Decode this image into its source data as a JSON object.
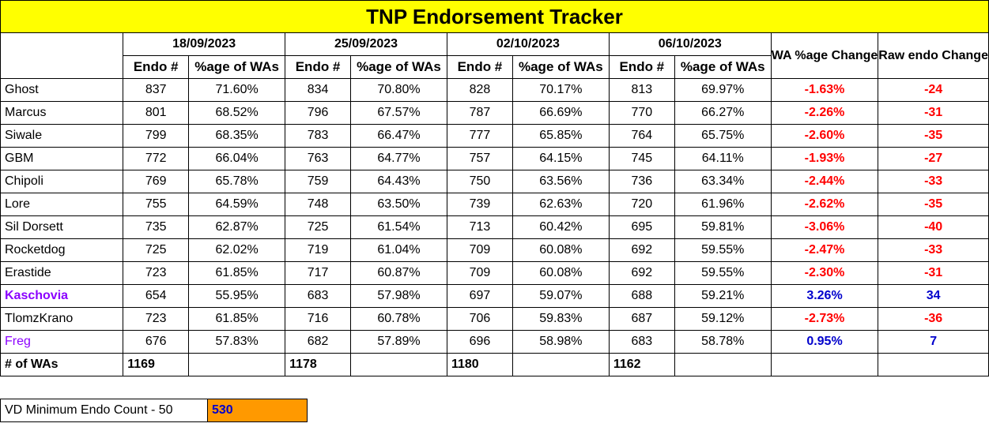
{
  "title": "TNP Endorsement Tracker",
  "dates": [
    "18/09/2023",
    "25/09/2023",
    "02/10/2023",
    "06/10/2023"
  ],
  "sub_headers": {
    "endo": "Endo #",
    "pct": "%age of WAs"
  },
  "change_headers": {
    "wa_pct": "WA %age Change",
    "raw": "Raw endo Change"
  },
  "rows": [
    {
      "name": "Ghost",
      "endo": [
        "837",
        "834",
        "828",
        "813"
      ],
      "pct": [
        "71.60%",
        "70.80%",
        "70.17%",
        "69.97%"
      ],
      "wa_change": "-1.63%",
      "raw_change": "-24"
    },
    {
      "name": "Marcus",
      "endo": [
        "801",
        "796",
        "787",
        "770"
      ],
      "pct": [
        "68.52%",
        "67.57%",
        "66.69%",
        "66.27%"
      ],
      "wa_change": "-2.26%",
      "raw_change": "-31"
    },
    {
      "name": "Siwale",
      "endo": [
        "799",
        "783",
        "777",
        "764"
      ],
      "pct": [
        "68.35%",
        "66.47%",
        "65.85%",
        "65.75%"
      ],
      "wa_change": "-2.60%",
      "raw_change": "-35"
    },
    {
      "name": "GBM",
      "endo": [
        "772",
        "763",
        "757",
        "745"
      ],
      "pct": [
        "66.04%",
        "64.77%",
        "64.15%",
        "64.11%"
      ],
      "wa_change": "-1.93%",
      "raw_change": "-27"
    },
    {
      "name": "Chipoli",
      "endo": [
        "769",
        "759",
        "750",
        "736"
      ],
      "pct": [
        "65.78%",
        "64.43%",
        "63.56%",
        "63.34%"
      ],
      "wa_change": "-2.44%",
      "raw_change": "-33"
    },
    {
      "name": "Lore",
      "endo": [
        "755",
        "748",
        "739",
        "720"
      ],
      "pct": [
        "64.59%",
        "63.50%",
        "62.63%",
        "61.96%"
      ],
      "wa_change": "-2.62%",
      "raw_change": "-35"
    },
    {
      "name": "Sil Dorsett",
      "endo": [
        "735",
        "725",
        "713",
        "695"
      ],
      "pct": [
        "62.87%",
        "61.54%",
        "60.42%",
        "59.81%"
      ],
      "wa_change": "-3.06%",
      "raw_change": "-40"
    },
    {
      "name": "Rocketdog",
      "endo": [
        "725",
        "719",
        "709",
        "692"
      ],
      "pct": [
        "62.02%",
        "61.04%",
        "60.08%",
        "59.55%"
      ],
      "wa_change": "-2.47%",
      "raw_change": "-33"
    },
    {
      "name": "Erastide",
      "endo": [
        "723",
        "717",
        "709",
        "692"
      ],
      "pct": [
        "61.85%",
        "60.87%",
        "60.08%",
        "59.55%"
      ],
      "wa_change": "-2.30%",
      "raw_change": "-31"
    },
    {
      "name": "Kaschovia",
      "endo": [
        "654",
        "683",
        "697",
        "688"
      ],
      "pct": [
        "55.95%",
        "57.98%",
        "59.07%",
        "59.21%"
      ],
      "wa_change": "3.26%",
      "raw_change": "34"
    },
    {
      "name": "TlomzKrano",
      "endo": [
        "723",
        "716",
        "706",
        "687"
      ],
      "pct": [
        "61.85%",
        "60.78%",
        "59.83%",
        "59.12%"
      ],
      "wa_change": "-2.73%",
      "raw_change": "-36"
    },
    {
      "name": "Freg",
      "endo": [
        "676",
        "682",
        "696",
        "683"
      ],
      "pct": [
        "57.83%",
        "57.89%",
        "58.98%",
        "58.78%"
      ],
      "wa_change": "0.95%",
      "raw_change": "7"
    }
  ],
  "totals": {
    "label": "# of WAs",
    "values": [
      "1169",
      "1178",
      "1180",
      "1162"
    ]
  },
  "vd": {
    "label": "VD Minimum Endo Count - 50",
    "value": "530"
  },
  "colors": {
    "title_bg": "#ffff00",
    "negative": "#ff0000",
    "positive": "#0000cc",
    "highlight_name": "#8b00ff",
    "vd_bg": "#ff9900"
  }
}
